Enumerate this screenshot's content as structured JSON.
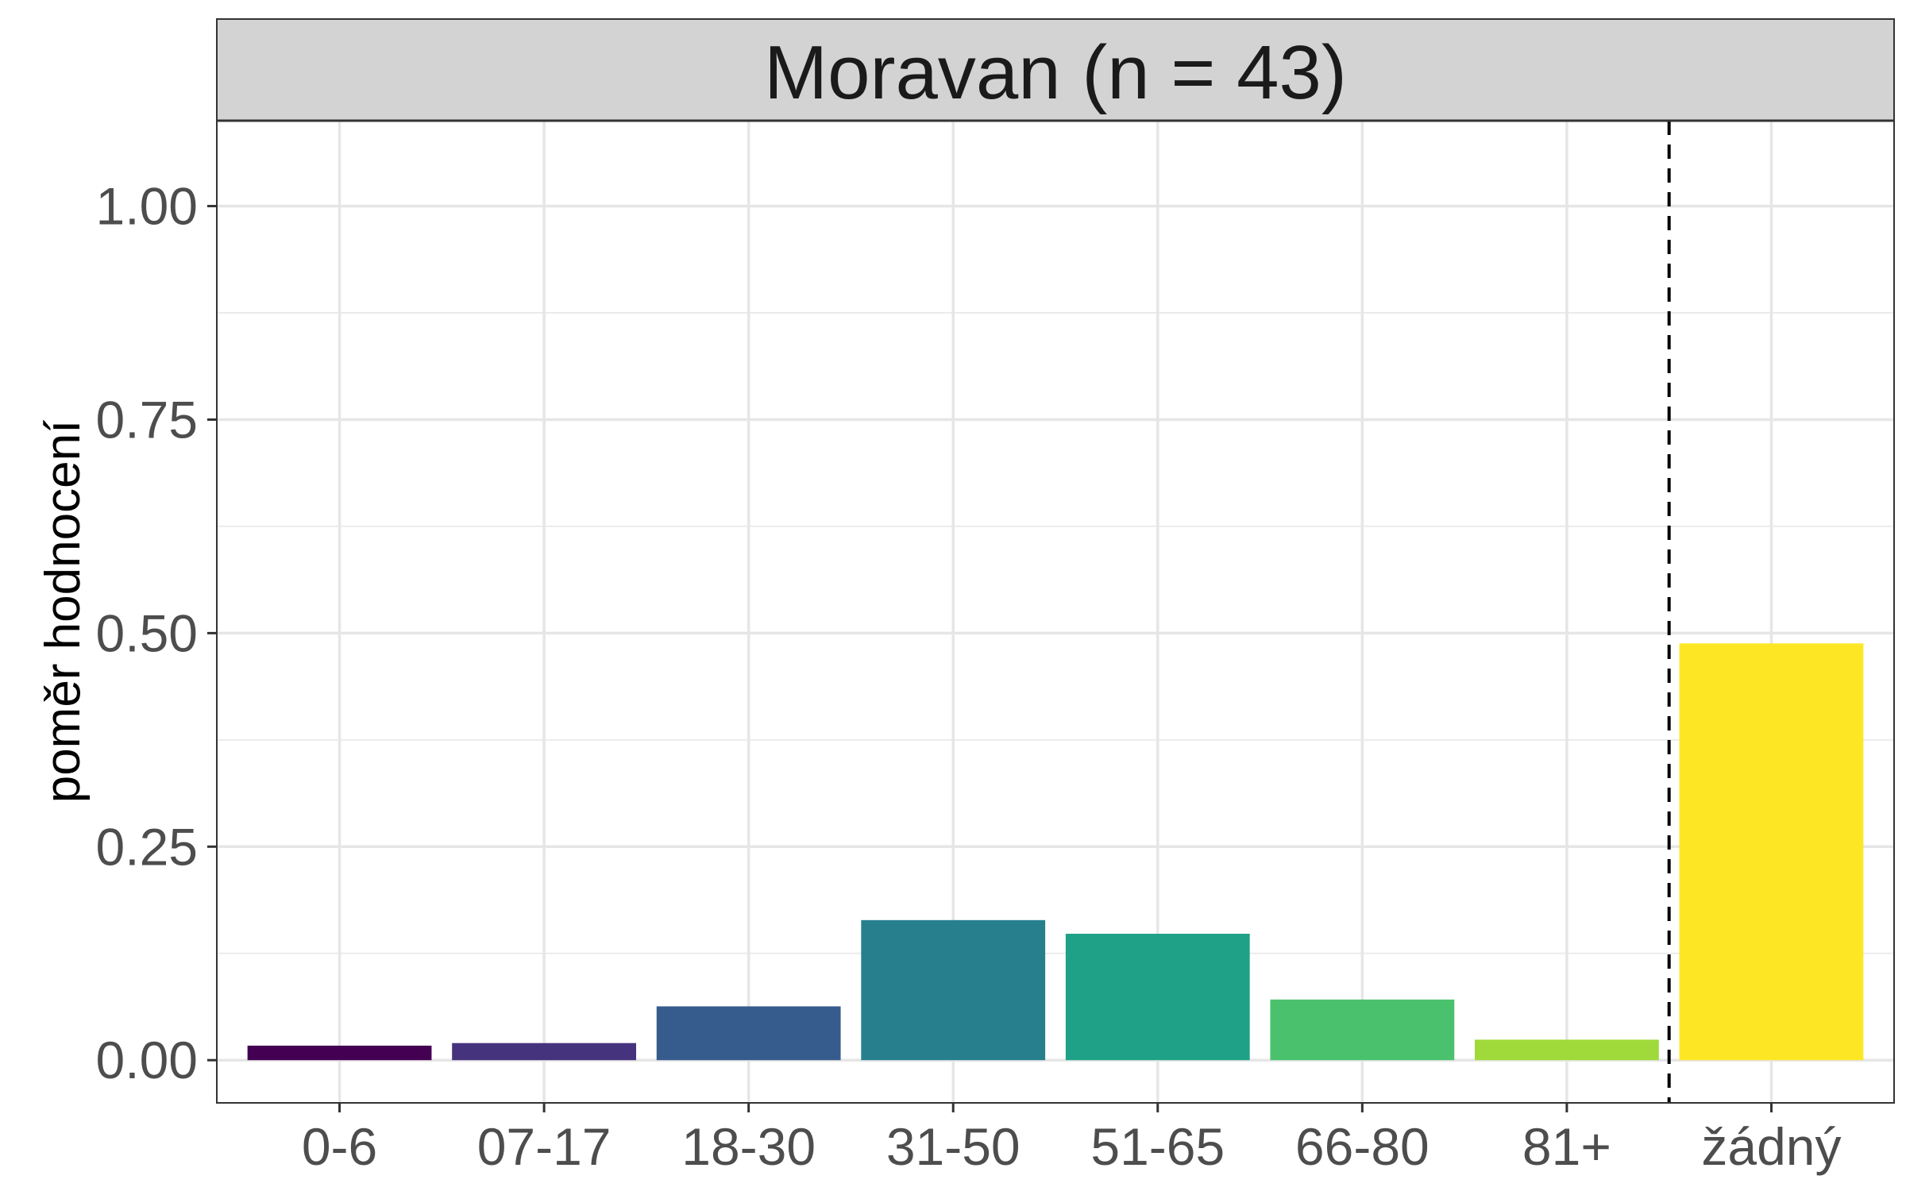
{
  "chart_data": {
    "type": "bar",
    "facet_title": "Moravan (n = 43)",
    "xlabel": "",
    "ylabel": "poměr hodnocení",
    "categories": [
      "0-6",
      "07-17",
      "18-30",
      "31-50",
      "51-65",
      "66-80",
      "81+",
      "žádný"
    ],
    "values": [
      0.017,
      0.02,
      0.063,
      0.164,
      0.148,
      0.071,
      0.024,
      0.488
    ],
    "colors": [
      "#440154",
      "#46337E",
      "#365C8D",
      "#277F8E",
      "#1FA187",
      "#4AC16D",
      "#9FDA3A",
      "#FDE725"
    ],
    "ylim": [
      -0.05,
      1.1
    ],
    "yticks": [
      0.0,
      0.25,
      0.5,
      0.75,
      1.0
    ],
    "ytick_labels": [
      "0.00",
      "0.25",
      "0.50",
      "0.75",
      "1.00"
    ],
    "reference_line": {
      "between": [
        "81+",
        "žádný"
      ],
      "style": "dashed"
    },
    "grid": true,
    "legend": "none"
  }
}
